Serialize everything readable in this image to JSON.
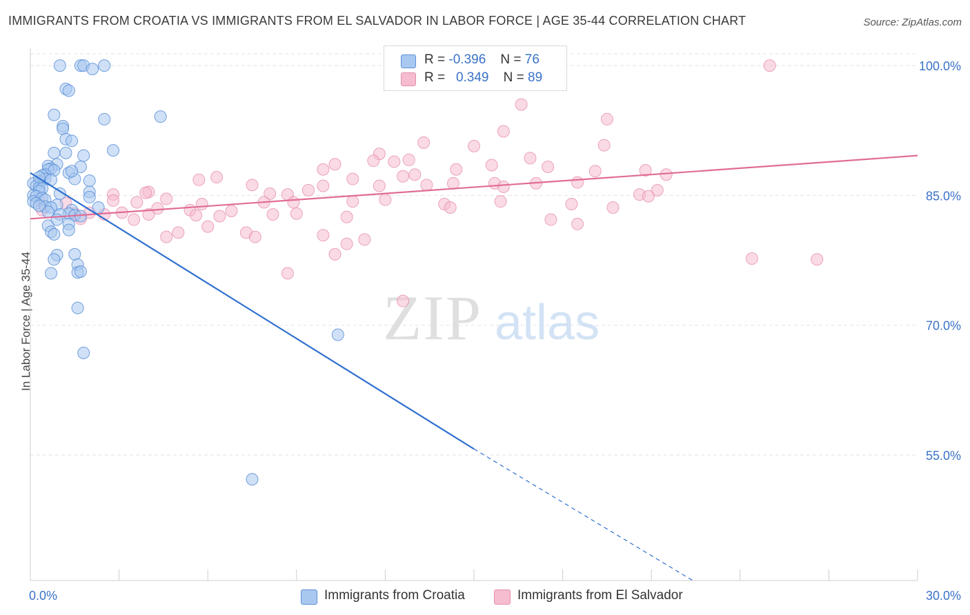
{
  "title": "IMMIGRANTS FROM CROATIA VS IMMIGRANTS FROM EL SALVADOR IN LABOR FORCE | AGE 35-44 CORRELATION CHART",
  "source": "Source: ZipAtlas.com",
  "watermark": {
    "zip": "ZIP",
    "atlas": "atlas"
  },
  "legend_top": [
    {
      "r_label": "R =",
      "r_value": "-0.396",
      "n_label": "N =",
      "n_value": "76"
    },
    {
      "r_label": "R =",
      "r_value": "0.349",
      "n_label": "N =",
      "n_value": "89"
    }
  ],
  "colors": {
    "croatia_fill": "#a9c8f0",
    "croatia_stroke": "#5a8fd6",
    "croatia_line": "#2e6fcf",
    "elsalvador_fill": "#f6bcd0",
    "elsalvador_stroke": "#e58fae",
    "elsalvador_line": "#e06c95",
    "tick_label": "#3a72c8",
    "grid": "#e2e2e2"
  },
  "chart_data": {
    "type": "scatter",
    "title": "IMMIGRANTS FROM CROATIA VS IMMIGRANTS FROM EL SALVADOR IN LABOR FORCE | AGE 35-44 CORRELATION CHART",
    "xlabel": "",
    "ylabel": "In Labor Force | Age 35-44",
    "xlim": [
      0,
      30
    ],
    "ylim": [
      40.5,
      102
    ],
    "x_tick_labels": [
      "0.0%",
      "30.0%"
    ],
    "y_ticks": [
      55,
      70,
      85,
      100
    ],
    "y_tick_labels": [
      "55.0%",
      "70.0%",
      "85.0%",
      "100.0%"
    ],
    "grid": true,
    "legend": "top-center and bottom",
    "series": [
      {
        "name": "Immigrants from Croatia",
        "points": [
          [
            1.0,
            100.0
          ],
          [
            1.7,
            100.0
          ],
          [
            1.8,
            100.0
          ],
          [
            2.1,
            99.6
          ],
          [
            2.5,
            100.0
          ],
          [
            1.2,
            97.3
          ],
          [
            1.3,
            97.1
          ],
          [
            2.5,
            93.8
          ],
          [
            4.4,
            94.1
          ],
          [
            0.8,
            94.3
          ],
          [
            1.1,
            93.0
          ],
          [
            1.1,
            92.7
          ],
          [
            1.2,
            91.5
          ],
          [
            1.4,
            91.3
          ],
          [
            2.8,
            90.2
          ],
          [
            1.2,
            89.9
          ],
          [
            0.8,
            89.9
          ],
          [
            1.8,
            89.6
          ],
          [
            0.9,
            88.6
          ],
          [
            0.6,
            88.4
          ],
          [
            1.7,
            88.3
          ],
          [
            0.7,
            88.1
          ],
          [
            0.6,
            88.0
          ],
          [
            0.8,
            87.9
          ],
          [
            0.5,
            87.4
          ],
          [
            1.3,
            87.6
          ],
          [
            0.4,
            87.3
          ],
          [
            0.5,
            86.9
          ],
          [
            0.7,
            86.8
          ],
          [
            1.5,
            86.9
          ],
          [
            2.0,
            86.7
          ],
          [
            0.3,
            86.6
          ],
          [
            0.1,
            86.4
          ],
          [
            0.2,
            86.1
          ],
          [
            0.3,
            85.9
          ],
          [
            0.4,
            85.8
          ],
          [
            2.0,
            85.4
          ],
          [
            0.3,
            85.5
          ],
          [
            1.0,
            85.2
          ],
          [
            0.1,
            85.0
          ],
          [
            0.2,
            84.9
          ],
          [
            0.4,
            84.7
          ],
          [
            0.5,
            84.5
          ],
          [
            0.1,
            84.3
          ],
          [
            0.2,
            84.1
          ],
          [
            0.5,
            83.7
          ],
          [
            0.9,
            83.9
          ],
          [
            0.7,
            83.6
          ],
          [
            1.4,
            83.3
          ],
          [
            0.6,
            83.1
          ],
          [
            1.3,
            82.9
          ],
          [
            1.0,
            82.8
          ],
          [
            1.5,
            82.7
          ],
          [
            1.7,
            82.6
          ],
          [
            2.3,
            83.6
          ],
          [
            0.9,
            82.2
          ],
          [
            1.3,
            81.7
          ],
          [
            0.6,
            81.5
          ],
          [
            1.3,
            81.0
          ],
          [
            0.7,
            80.8
          ],
          [
            0.8,
            80.5
          ],
          [
            1.5,
            78.2
          ],
          [
            0.9,
            78.1
          ],
          [
            0.8,
            77.6
          ],
          [
            1.6,
            77.0
          ],
          [
            1.6,
            76.1
          ],
          [
            0.7,
            76.0
          ],
          [
            1.7,
            76.2
          ],
          [
            1.6,
            72.0
          ],
          [
            1.8,
            66.8
          ],
          [
            10.4,
            68.9
          ],
          [
            7.5,
            52.2
          ],
          [
            0.3,
            87.1
          ],
          [
            2.0,
            84.8
          ],
          [
            1.4,
            87.8
          ],
          [
            0.3,
            83.8
          ]
        ]
      },
      {
        "name": "Immigrants from El Salvador",
        "points": [
          [
            25.0,
            100.0
          ],
          [
            16.6,
            95.5
          ],
          [
            19.5,
            93.8
          ],
          [
            16.0,
            92.4
          ],
          [
            13.3,
            91.1
          ],
          [
            15.0,
            90.7
          ],
          [
            19.4,
            90.8
          ],
          [
            11.8,
            89.8
          ],
          [
            16.9,
            89.3
          ],
          [
            11.6,
            89.0
          ],
          [
            12.3,
            88.9
          ],
          [
            12.8,
            89.1
          ],
          [
            10.3,
            88.6
          ],
          [
            9.9,
            88.0
          ],
          [
            14.4,
            88.0
          ],
          [
            15.6,
            88.5
          ],
          [
            17.5,
            88.3
          ],
          [
            19.1,
            87.8
          ],
          [
            20.8,
            87.9
          ],
          [
            21.5,
            87.4
          ],
          [
            13.0,
            87.4
          ],
          [
            12.6,
            87.2
          ],
          [
            10.9,
            86.9
          ],
          [
            6.3,
            87.1
          ],
          [
            5.7,
            86.8
          ],
          [
            7.5,
            86.2
          ],
          [
            9.9,
            86.1
          ],
          [
            11.8,
            86.1
          ],
          [
            14.3,
            86.4
          ],
          [
            15.7,
            86.4
          ],
          [
            13.4,
            86.2
          ],
          [
            16.0,
            86.0
          ],
          [
            18.5,
            86.5
          ],
          [
            17.1,
            86.4
          ],
          [
            21.2,
            85.6
          ],
          [
            20.6,
            85.1
          ],
          [
            9.4,
            85.6
          ],
          [
            8.1,
            85.2
          ],
          [
            8.7,
            85.1
          ],
          [
            4.0,
            85.4
          ],
          [
            3.9,
            85.3
          ],
          [
            2.8,
            85.1
          ],
          [
            2.8,
            84.4
          ],
          [
            3.6,
            84.2
          ],
          [
            1.2,
            84.1
          ],
          [
            4.6,
            84.6
          ],
          [
            5.8,
            84.0
          ],
          [
            7.9,
            84.2
          ],
          [
            8.9,
            84.2
          ],
          [
            10.9,
            84.3
          ],
          [
            12.0,
            84.5
          ],
          [
            14.0,
            84.0
          ],
          [
            15.9,
            84.3
          ],
          [
            18.3,
            84.0
          ],
          [
            19.7,
            83.6
          ],
          [
            20.9,
            84.9
          ],
          [
            14.2,
            83.6
          ],
          [
            4.3,
            83.5
          ],
          [
            5.4,
            83.3
          ],
          [
            6.8,
            83.2
          ],
          [
            2.0,
            83.0
          ],
          [
            3.1,
            83.0
          ],
          [
            4.0,
            82.8
          ],
          [
            5.6,
            82.7
          ],
          [
            6.4,
            82.6
          ],
          [
            8.2,
            82.8
          ],
          [
            9.0,
            82.9
          ],
          [
            10.7,
            82.5
          ],
          [
            1.7,
            82.3
          ],
          [
            3.5,
            82.2
          ],
          [
            17.6,
            82.2
          ],
          [
            18.5,
            81.7
          ],
          [
            6.0,
            81.4
          ],
          [
            7.3,
            80.7
          ],
          [
            9.9,
            80.4
          ],
          [
            11.3,
            79.9
          ],
          [
            10.7,
            79.4
          ],
          [
            5.0,
            80.7
          ],
          [
            4.6,
            80.2
          ],
          [
            7.6,
            80.2
          ],
          [
            10.3,
            78.2
          ],
          [
            8.7,
            76.0
          ],
          [
            12.6,
            72.8
          ],
          [
            24.4,
            77.7
          ],
          [
            26.6,
            77.6
          ],
          [
            0.4,
            83.3
          ],
          [
            1.5,
            82.9
          ],
          [
            2.5,
            82.8
          ],
          [
            0.3,
            84.5
          ]
        ]
      }
    ],
    "trendlines": [
      {
        "series": "Immigrants from Croatia",
        "x1": 0.0,
        "y1": 87.6,
        "x2": 15.0,
        "y2": 55.7,
        "dashed_to_x": 22.4,
        "dashed_to_y": 40.5
      },
      {
        "series": "Immigrants from El Salvador",
        "x1": 0.0,
        "y1": 82.3,
        "x2": 30.0,
        "y2": 89.6
      }
    ]
  }
}
